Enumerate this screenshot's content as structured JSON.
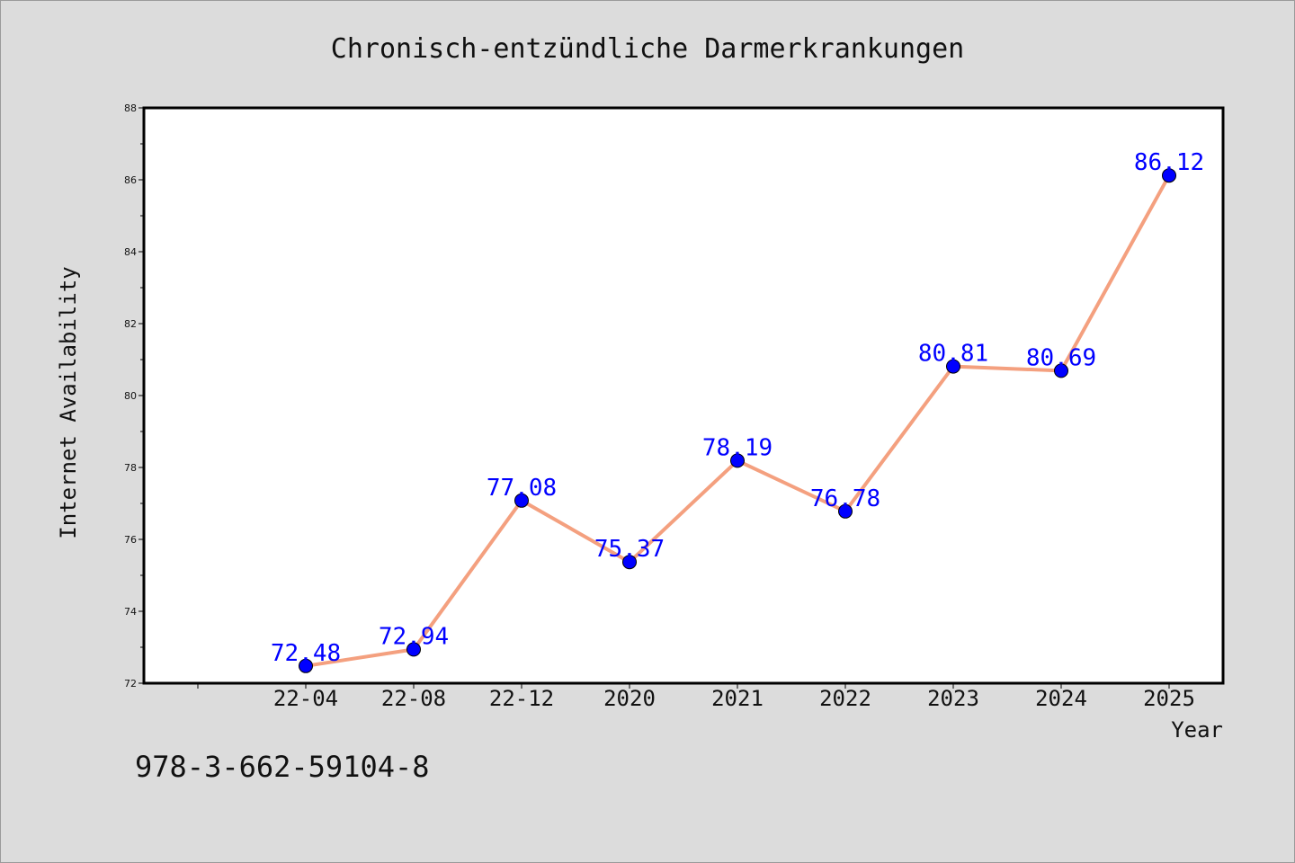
{
  "chart_data": {
    "type": "line",
    "title": "Chronisch-entzündliche Darmerkrankungen",
    "xlabel": "Year",
    "ylabel": "Internet Availability",
    "categories": [
      "22-04",
      "22-08",
      "22-12",
      "2020",
      "2021",
      "2022",
      "2023",
      "2024",
      "2025"
    ],
    "series": [
      {
        "values": [
          72.48,
          72.94,
          77.08,
          75.37,
          78.19,
          76.78,
          80.81,
          80.69,
          86.12
        ],
        "line_color": "#f4a07f",
        "marker_color": "#0000ff"
      }
    ],
    "data_labels": [
      "72.48",
      "72.94",
      "77.08",
      "75.37",
      "78.19",
      "76.78",
      "80.81",
      "80.69",
      "86.12"
    ],
    "ylim": [
      72,
      88
    ],
    "yticks": [
      "72",
      "74",
      "76",
      "78",
      "80",
      "82",
      "84",
      "86",
      "88"
    ],
    "grid": false,
    "legend": "none"
  },
  "footer": {
    "isbn": "978-3-662-59104-8"
  },
  "colors": {
    "background": "#dcdcdc",
    "plot_background": "#ffffff",
    "line": "#f4a07f",
    "marker": "#0000ff",
    "data_label": "#0000ff"
  }
}
